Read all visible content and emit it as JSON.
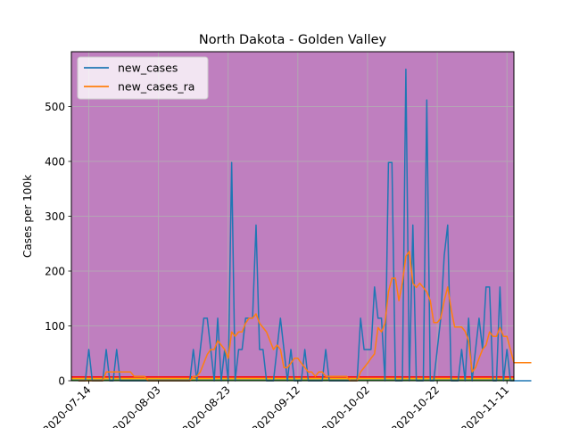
{
  "chart_data": {
    "type": "line",
    "title": "North Dakota - Golden Valley",
    "xlabel": "",
    "ylabel": "Cases per 100k",
    "x_start": "2020-07-11",
    "x_end": "2020-11-12",
    "xlim": [
      "2020-07-09",
      "2020-11-13"
    ],
    "ylim": [
      0,
      600
    ],
    "y_ticks": [
      0,
      100,
      200,
      300,
      400,
      500
    ],
    "x_ticks": [
      "2020-07-14",
      "2020-08-03",
      "2020-08-23",
      "2020-09-12",
      "2020-10-02",
      "2020-10-22",
      "2020-11-11"
    ],
    "grid": true,
    "background_color": "#bf7fbf",
    "legend_position": "top-left",
    "threshold_lines": [
      {
        "value": 1,
        "color": "#2ca02c"
      },
      {
        "value": 4,
        "color": "#ffaa00"
      },
      {
        "value": 7,
        "color": "#ff0000"
      }
    ],
    "series": [
      {
        "name": "new_cases",
        "color": "#1f77b4",
        "values": [
          0,
          0,
          0,
          57,
          0,
          0,
          0,
          0,
          57,
          0,
          0,
          57,
          0,
          0,
          0,
          0,
          0,
          0,
          0,
          0,
          0,
          0,
          0,
          0,
          0,
          0,
          0,
          0,
          0,
          0,
          0,
          0,
          0,
          57,
          0,
          57,
          114,
          114,
          57,
          0,
          114,
          0,
          57,
          0,
          398,
          0,
          57,
          57,
          114,
          114,
          114,
          284,
          57,
          57,
          0,
          0,
          0,
          57,
          114,
          57,
          0,
          57,
          0,
          0,
          0,
          57,
          0,
          0,
          0,
          0,
          0,
          57,
          0,
          0,
          0,
          0,
          0,
          0,
          0,
          0,
          0,
          114,
          57,
          57,
          57,
          171,
          114,
          114,
          0,
          398,
          398,
          0,
          0,
          0,
          568,
          0,
          284,
          0,
          0,
          0,
          512,
          0,
          0,
          57,
          114,
          228,
          284,
          0,
          0,
          0,
          57,
          0,
          114,
          0,
          57,
          114,
          57,
          171,
          171,
          0,
          0,
          171,
          0,
          57,
          0,
          0,
          0,
          0,
          0,
          0,
          0
        ]
      },
      {
        "name": "new_cases_ra",
        "color": "#ff7f0e",
        "values": [
          0,
          0,
          0,
          0,
          0,
          0,
          0,
          0,
          16,
          16,
          16,
          16,
          16,
          16,
          16,
          16,
          8,
          8,
          8,
          8,
          0,
          0,
          0,
          0,
          0,
          0,
          0,
          0,
          0,
          0,
          0,
          0,
          0,
          8,
          8,
          16,
          32,
          48,
          57,
          57,
          73,
          65,
          57,
          41,
          89,
          81,
          89,
          89,
          105,
          114,
          114,
          122,
          105,
          97,
          89,
          73,
          57,
          65,
          57,
          24,
          24,
          32,
          41,
          41,
          32,
          24,
          16,
          16,
          8,
          16,
          16,
          8,
          8,
          8,
          8,
          8,
          8,
          8,
          0,
          0,
          0,
          16,
          24,
          32,
          41,
          49,
          97,
          89,
          105,
          162,
          187,
          187,
          146,
          179,
          227,
          236,
          178,
          170,
          178,
          170,
          162,
          146,
          106,
          106,
          114,
          146,
          171,
          130,
          98,
          98,
          98,
          90,
          73,
          16,
          24,
          41,
          57,
          65,
          89,
          81,
          81,
          97,
          81,
          81,
          57,
          33,
          33,
          33,
          33,
          33,
          33
        ]
      }
    ]
  }
}
